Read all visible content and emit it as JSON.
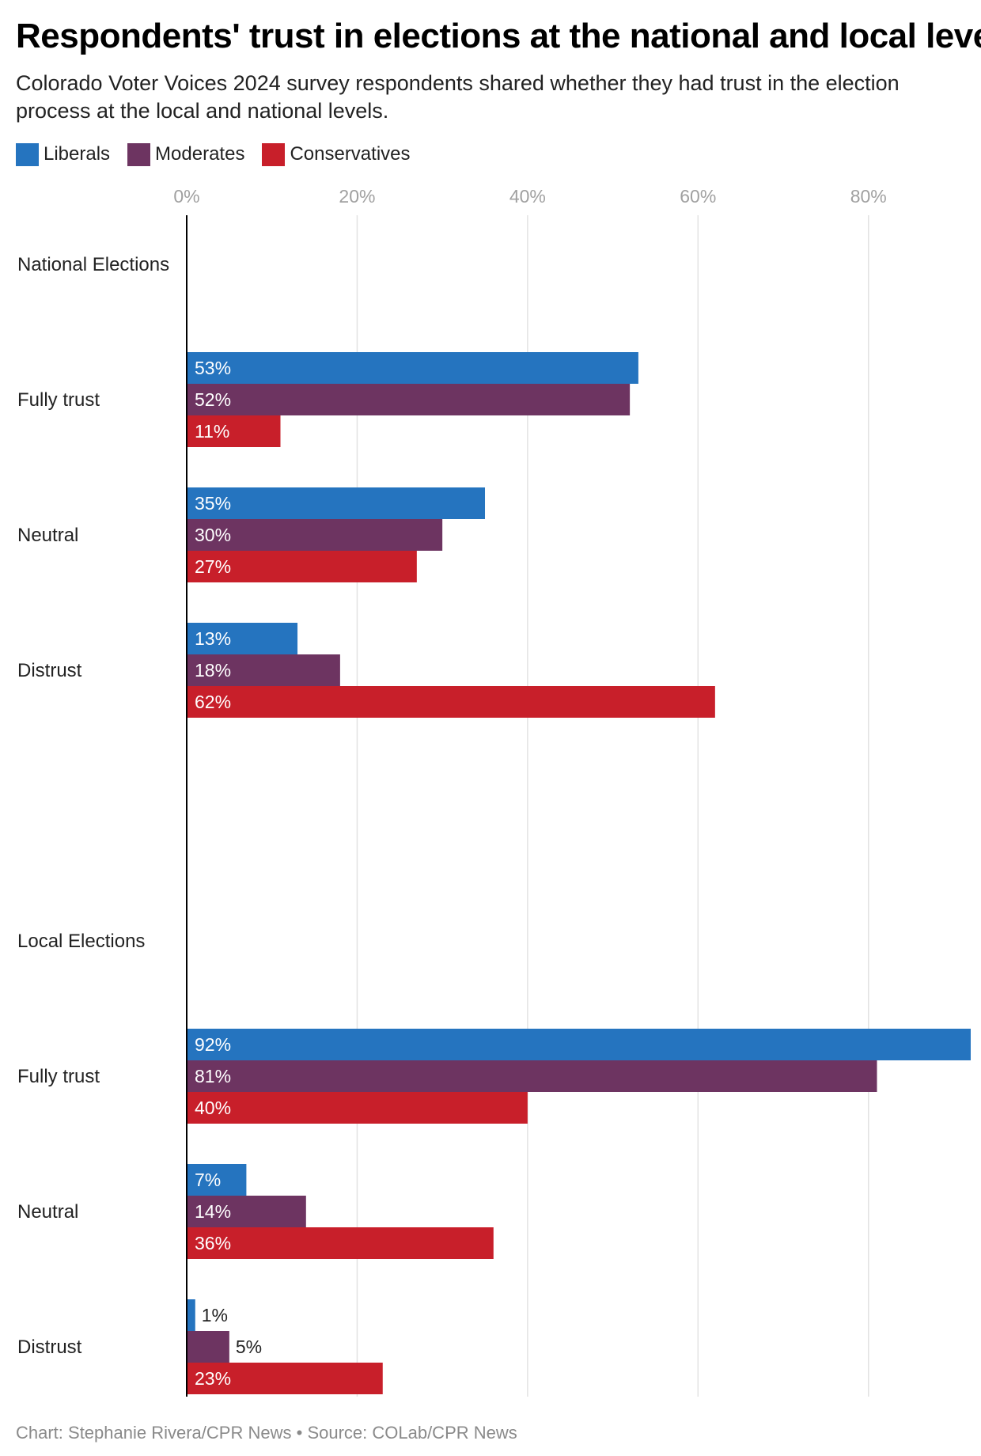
{
  "title": "Respondents' trust in elections at the national and local level",
  "subtitle": "Colorado Voter Voices 2024 survey respondents shared whether they had trust in the election process at the local and national levels.",
  "footer": {
    "credit": "Chart: Stephanie Rivera/CPR News",
    "separator": "•",
    "source": "Source: COLab/CPR News"
  },
  "colors": {
    "liberals": "#2574bf",
    "moderates": "#6d3461",
    "conservatives": "#c81f2a",
    "grid": "#e2e2e2",
    "axis": "#000000",
    "tick": "#a0a0a0"
  },
  "chart_data": {
    "type": "bar",
    "orientation": "horizontal",
    "title": "Respondents' trust in elections at the national and local level",
    "xlabel": "",
    "ylabel": "",
    "xlim": [
      0,
      92
    ],
    "x_ticks": [
      0,
      20,
      40,
      60,
      80
    ],
    "x_tick_labels": [
      "0%",
      "20%",
      "40%",
      "60%",
      "80%"
    ],
    "grid": true,
    "legend_position": "top-left",
    "series": [
      {
        "name": "Liberals",
        "color": "#2574bf"
      },
      {
        "name": "Moderates",
        "color": "#6d3461"
      },
      {
        "name": "Conservatives",
        "color": "#c81f2a"
      }
    ],
    "rows": [
      {
        "label": "National Elections",
        "header": true,
        "values": []
      },
      {
        "label": "Fully trust",
        "values": [
          53,
          52,
          11
        ],
        "labels": [
          "53%",
          "52%",
          "11%"
        ]
      },
      {
        "label": "Neutral",
        "values": [
          35,
          30,
          27
        ],
        "labels": [
          "35%",
          "30%",
          "27%"
        ]
      },
      {
        "label": "Distrust",
        "values": [
          13,
          18,
          62
        ],
        "labels": [
          "13%",
          "18%",
          "62%"
        ]
      },
      {
        "label": "",
        "spacer": true,
        "values": []
      },
      {
        "label": "Local Elections",
        "header": true,
        "values": []
      },
      {
        "label": "Fully trust",
        "values": [
          92,
          81,
          40
        ],
        "labels": [
          "92%",
          "81%",
          "40%"
        ]
      },
      {
        "label": "Neutral",
        "values": [
          7,
          14,
          36
        ],
        "labels": [
          "7%",
          "14%",
          "36%"
        ]
      },
      {
        "label": "Distrust",
        "values": [
          1,
          5,
          23
        ],
        "labels": [
          "1%",
          "5%",
          "23%"
        ]
      }
    ]
  }
}
